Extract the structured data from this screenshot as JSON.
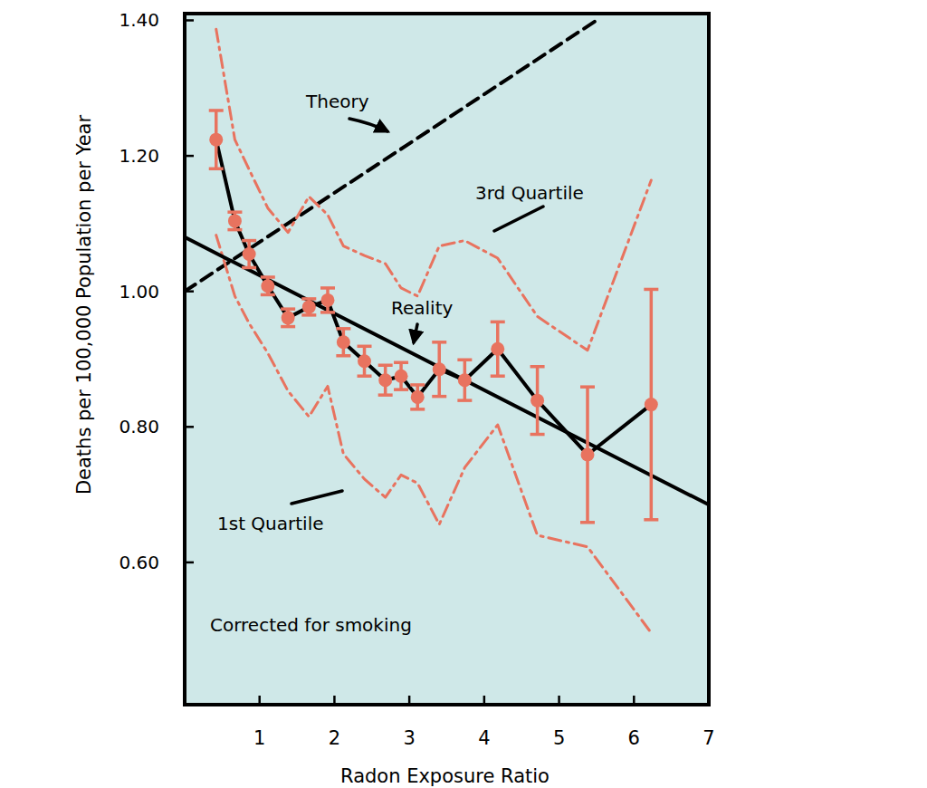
{
  "chart_data": {
    "type": "line",
    "x_label": "Radon Exposure Ratio",
    "y_label": "Deaths per 100,000 Population per Year",
    "annotations": [
      "Corrected for smoking"
    ],
    "xlim": [
      0,
      7
    ],
    "ylim": [
      0.39,
      1.41
    ],
    "xticks": [
      1,
      2,
      3,
      4,
      5,
      6,
      7
    ],
    "yticks": [
      {
        "value": 0.6,
        "label": "0.60"
      },
      {
        "value": 0.8,
        "label": "0.80"
      },
      {
        "value": 1.0,
        "label": "1.00"
      },
      {
        "value": 1.2,
        "label": "1.20"
      },
      {
        "value": 1.4,
        "label": "1.40"
      }
    ],
    "grid": false,
    "series": [
      {
        "name": "Theory",
        "type": "line",
        "line_style": "dashed",
        "color": "#000000",
        "x": [
          0,
          5.5
        ],
        "values": [
          1.0,
          1.4
        ]
      },
      {
        "name": "3rd Quartile",
        "type": "line",
        "line_style": "dashdot",
        "color": "#e8735f",
        "x": [
          0.42,
          0.67,
          0.86,
          1.11,
          1.38,
          1.66,
          1.91,
          2.12,
          2.4,
          2.68,
          2.89,
          3.11,
          3.4,
          3.74,
          4.18,
          4.71,
          5.38,
          6.23
        ],
        "values": [
          1.387,
          1.224,
          1.18,
          1.123,
          1.087,
          1.14,
          1.113,
          1.067,
          1.053,
          1.041,
          1.005,
          0.993,
          1.067,
          1.075,
          1.049,
          0.963,
          0.913,
          1.164
        ]
      },
      {
        "name": "1st Quartile",
        "type": "line",
        "line_style": "dashdot",
        "color": "#e8735f",
        "x": [
          0.42,
          0.67,
          0.86,
          1.11,
          1.38,
          1.66,
          1.91,
          2.12,
          2.4,
          2.68,
          2.89,
          3.11,
          3.4,
          3.74,
          4.18,
          4.71,
          5.38,
          6.23
        ],
        "values": [
          1.083,
          0.993,
          0.953,
          0.909,
          0.853,
          0.815,
          0.86,
          0.76,
          0.723,
          0.696,
          0.729,
          0.717,
          0.656,
          0.74,
          0.803,
          0.64,
          0.623,
          0.496
        ]
      },
      {
        "type": "line",
        "marker": "circle",
        "line_style": "solid",
        "color": "#e8735f",
        "x": [
          0.42,
          0.67,
          0.86,
          1.11,
          1.38,
          1.66,
          1.91,
          2.12,
          2.4,
          2.68,
          2.89,
          3.11,
          3.4,
          3.74,
          4.18,
          4.71,
          5.38,
          6.23
        ],
        "values": [
          1.224,
          1.104,
          1.055,
          1.008,
          0.961,
          0.977,
          0.987,
          0.925,
          0.897,
          0.869,
          0.875,
          0.844,
          0.885,
          0.869,
          0.915,
          0.839,
          0.759,
          0.833
        ],
        "errors": [
          0.043,
          0.013,
          0.02,
          0.013,
          0.013,
          0.012,
          0.018,
          0.02,
          0.022,
          0.022,
          0.02,
          0.018,
          0.04,
          0.03,
          0.04,
          0.05,
          0.1,
          0.17
        ]
      },
      {
        "name": "Reality",
        "type": "line",
        "line_style": "solid",
        "color": "#000000",
        "x": [
          0,
          7
        ],
        "values": [
          1.08,
          0.685
        ]
      }
    ]
  }
}
